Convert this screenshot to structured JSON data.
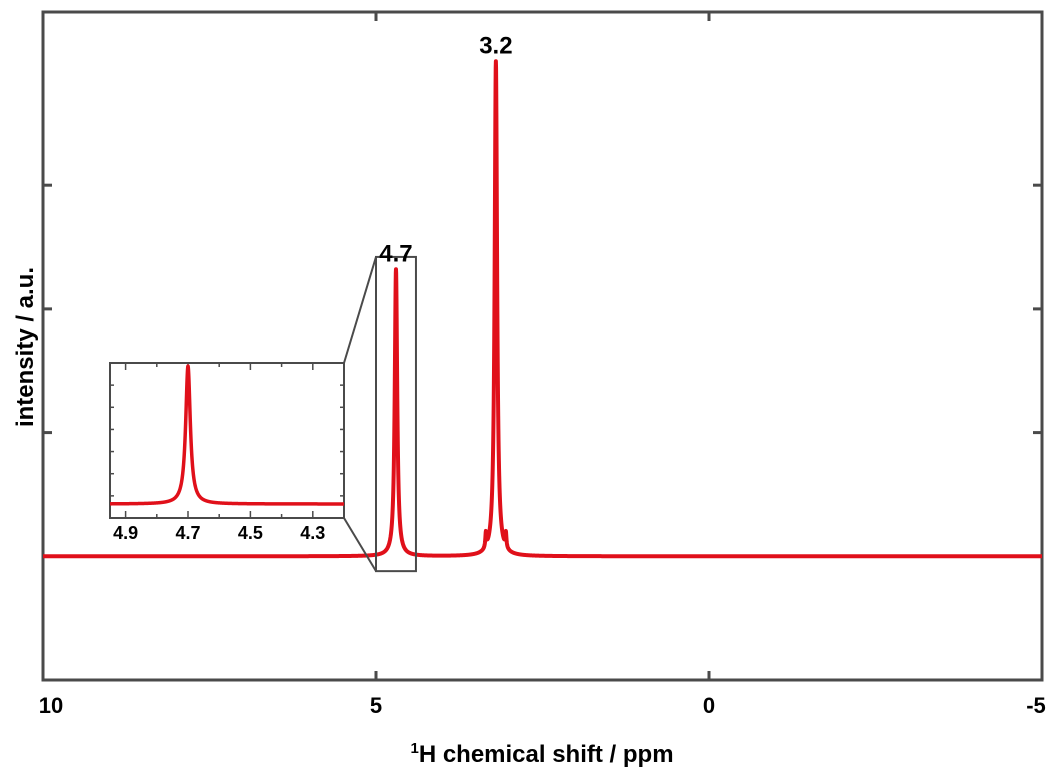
{
  "chart_data": {
    "type": "line",
    "xlabel_sup": "1",
    "xlabel_main": "H chemical shift / ppm",
    "ylabel": "intensity / a.u.",
    "xlim": [
      10,
      -5
    ],
    "ylim": [
      -0.25,
      1.1
    ],
    "x_reversed": true,
    "x_ticks": [
      10,
      5,
      0,
      -5
    ],
    "x_tick_labels": [
      "10",
      "5",
      "0",
      "-5"
    ],
    "y_ticks": [
      0,
      0.25,
      0.5,
      0.75
    ],
    "y_tick_labels_visible": false,
    "grid": false,
    "color": "#e0101a",
    "series": [
      {
        "peaks": [
          {
            "center": 4.7,
            "height": 0.58,
            "hwhm": 0.022
          },
          {
            "center": 3.2,
            "height": 1.0,
            "hwhm": 0.022
          },
          {
            "center": 3.35,
            "height": 0.03,
            "hwhm": 0.01
          },
          {
            "center": 3.05,
            "height": 0.03,
            "hwhm": 0.01
          }
        ]
      }
    ],
    "annotations": [
      {
        "text": "3.2",
        "x": 3.2,
        "y": 1.0
      },
      {
        "text": "4.7",
        "x": 4.7,
        "y": 0.58
      }
    ],
    "zoom_box": {
      "x_range": [
        5.0,
        4.4
      ],
      "y_range": [
        -0.03,
        0.605
      ]
    },
    "inset": {
      "xlim": [
        4.95,
        4.2
      ],
      "x_ticks": [
        4.9,
        4.7,
        4.5,
        4.3
      ],
      "x_tick_labels": [
        "4.9",
        "4.7",
        "4.5",
        "4.3"
      ],
      "peak": {
        "center": 4.7,
        "hwhm": 0.009
      }
    }
  }
}
